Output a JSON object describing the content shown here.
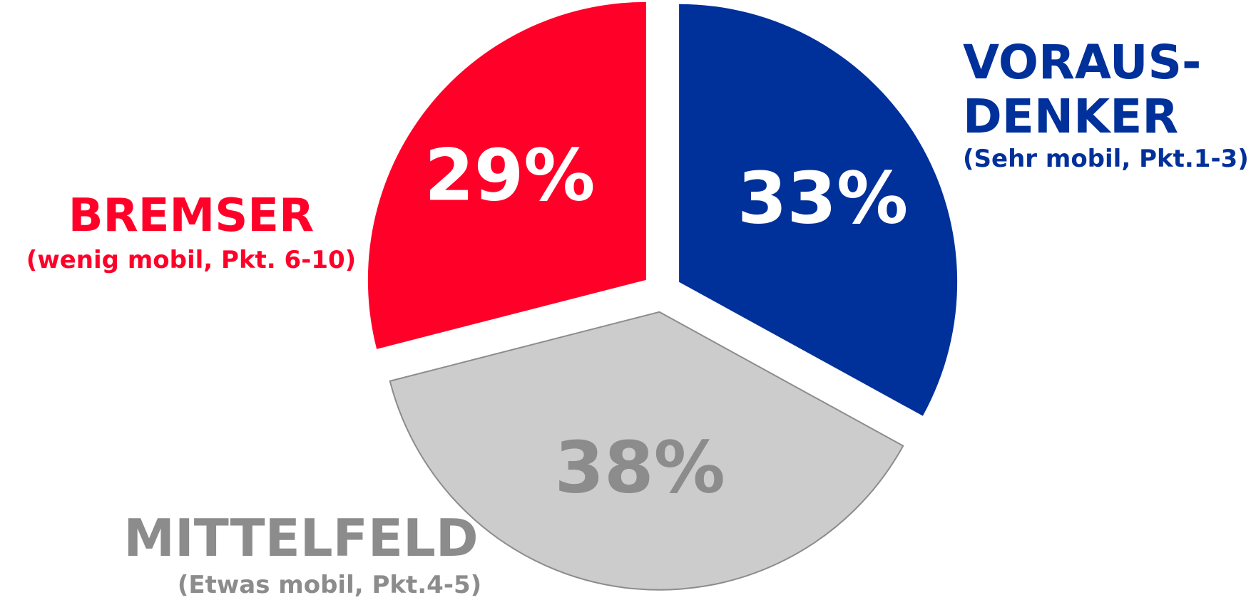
{
  "chart_data": {
    "type": "pie",
    "slices": [
      {
        "key": "vorausdenker",
        "value": 33,
        "value_label": "33%",
        "title_lines": [
          "VORAUS-",
          "DENKER"
        ],
        "subtitle": "(Sehr mobil, Pkt.1-3)",
        "color": "#00309A",
        "label_color": "#FFFFFF",
        "text_color": "#00309A"
      },
      {
        "key": "mittelfeld",
        "value": 38,
        "value_label": "38%",
        "title_lines": [
          "MITTELFELD"
        ],
        "subtitle": "(Etwas mobil, Pkt.4-5)",
        "color": "#CCCCCC",
        "label_color": "#8C8C8C",
        "text_color": "#8C8C8C"
      },
      {
        "key": "bremser",
        "value": 29,
        "value_label": "29%",
        "title_lines": [
          "BREMSER"
        ],
        "subtitle": "(wenig mobil, Pkt. 6-10)",
        "color": "#FF0029",
        "label_color": "#FFFFFF",
        "text_color": "#FF0029"
      }
    ],
    "start": "12 o'clock",
    "direction": "clockwise",
    "exploded": true
  }
}
